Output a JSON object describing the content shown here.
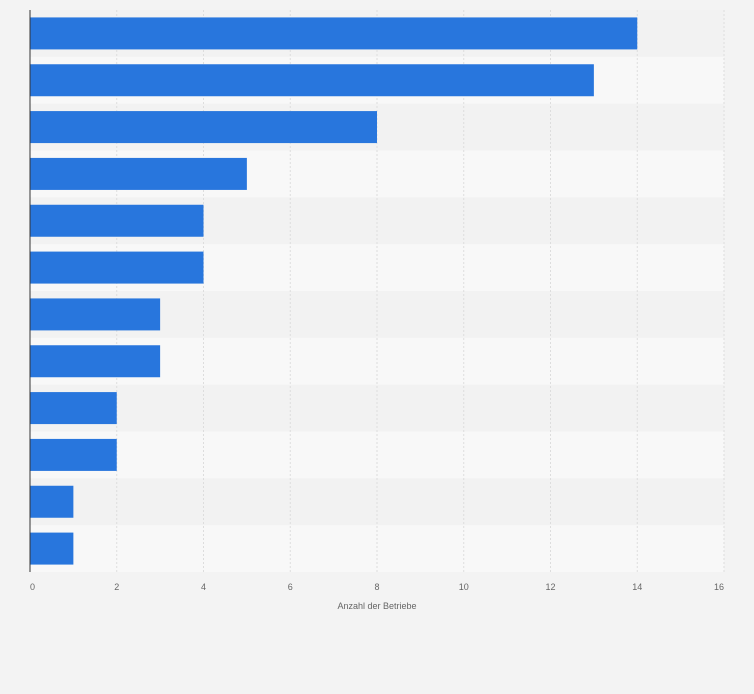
{
  "chart_data": {
    "type": "bar",
    "orientation": "horizontal",
    "categories": [
      "",
      "",
      "",
      "",
      "",
      "",
      "",
      "",
      "",
      "",
      "",
      ""
    ],
    "values": [
      14,
      13,
      8,
      5,
      4,
      4,
      3,
      3,
      2,
      2,
      1,
      1
    ],
    "xlabel": "Anzahl der Betriebe",
    "ylabel": "",
    "xlim": [
      0,
      16
    ],
    "xticks": [
      0,
      2,
      4,
      6,
      8,
      10,
      12,
      14,
      16
    ],
    "grid": true,
    "bar_color": "#2876dd",
    "row_band_colors": [
      "#f2f2f2",
      "#f8f8f8"
    ],
    "grid_color": "#dddddd",
    "axis_color": "#333333",
    "background_color": "#f3f3f3"
  }
}
